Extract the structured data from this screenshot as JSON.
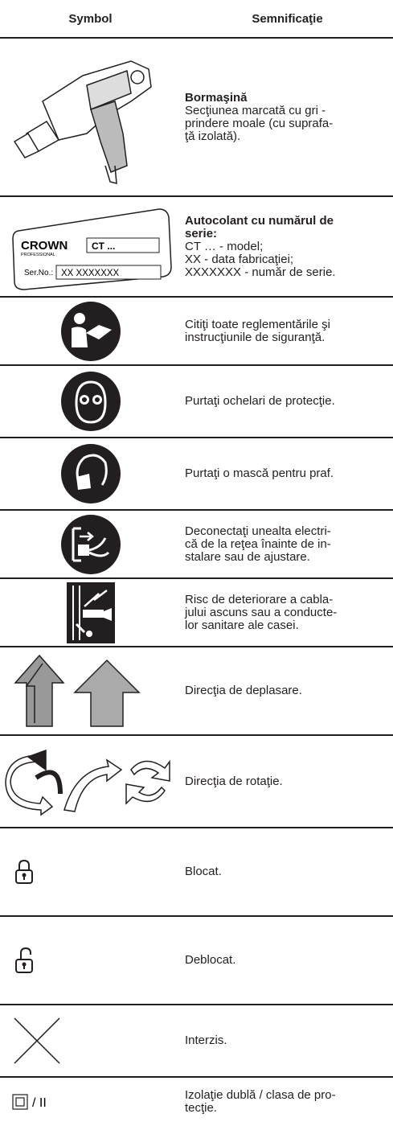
{
  "table": {
    "header": [
      "Symbol",
      "Semnificaţie"
    ],
    "rows": [
      {
        "title": [
          "Bormaşină"
        ],
        "lines": [
          "Secţiunea marcată cu gri -",
          "prindere moale (cu suprafa-",
          "ţă izolată)."
        ]
      },
      {
        "title": [
          "Autocolant cu numărul de",
          "serie:"
        ],
        "lines": [
          "CT … - model;",
          "XX - data fabricaţiei;",
          "XXXXXXX - număr de serie."
        ],
        "sticker": {
          "brand": "CROWN",
          "sub": "PROFESSIONAL",
          "model": "CT ...",
          "serial_label": "Ser.No.:",
          "serial": "XX XXXXXXX"
        }
      },
      {
        "lines": [
          "Citiţi toate reglementările şi",
          "instrucţiunile de siguranţă."
        ]
      },
      {
        "lines": [
          "Purtaţi ochelari de protecţie."
        ]
      },
      {
        "lines": [
          "Purtaţi o mască pentru praf."
        ]
      },
      {
        "lines": [
          "Deconectaţi unealta electri-",
          "că de la reţea înainte de in-",
          "stalare sau de ajustare."
        ]
      },
      {
        "lines": [
          "Risc de deteriorare a cabla-",
          "jului ascuns sau a conducte-",
          "lor sanitare ale casei."
        ]
      },
      {
        "lines": [
          "Direcţia de deplasare."
        ]
      },
      {
        "lines": [
          "Direcţia de rotaţie."
        ]
      },
      {
        "lines": [
          "Blocat."
        ]
      },
      {
        "lines": [
          "Deblocat."
        ]
      },
      {
        "lines": [
          "Interzis."
        ]
      },
      {
        "lines": [
          "Izolaţie dublă / clasa de pro-",
          "tecţie."
        ],
        "symbol_label": "/ II"
      }
    ]
  }
}
